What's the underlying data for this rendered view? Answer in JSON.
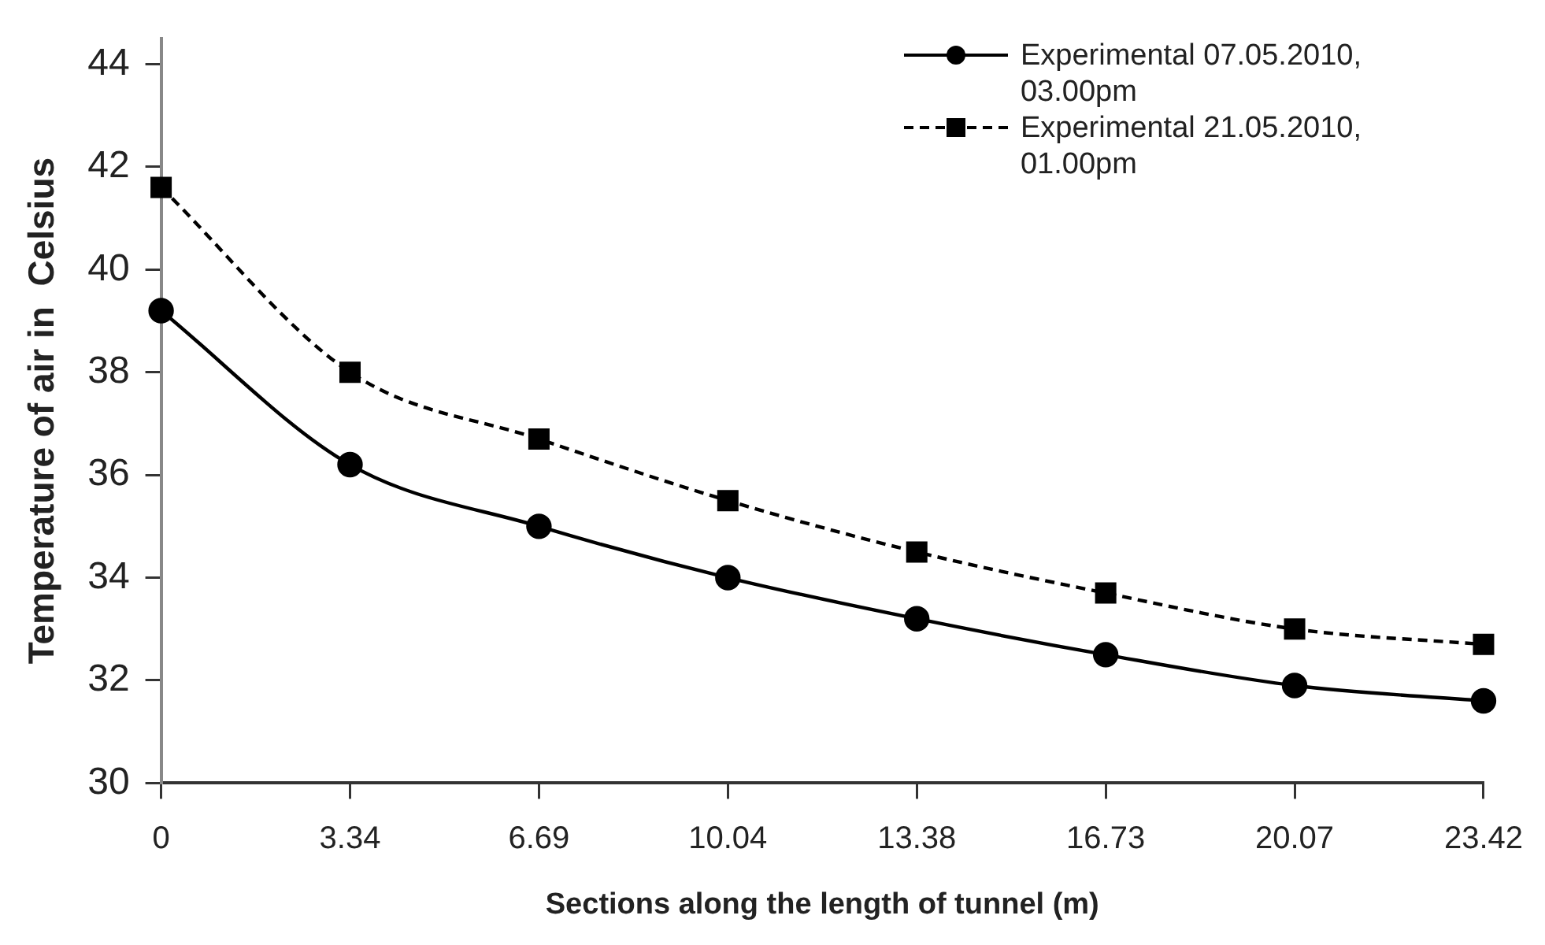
{
  "chart_data": {
    "type": "line",
    "xlabel": "Sections along the length of tunnel (m)",
    "ylabel": "Temperature of air in  Celsius",
    "categories": [
      "0",
      "3.34",
      "6.69",
      "10.04",
      "13.38",
      "16.73",
      "20.07",
      "23.42"
    ],
    "series": [
      {
        "name": "Experimental 07.05.2010, 03.00pm",
        "color": "#000000",
        "marker": "circle",
        "line_style": "solid",
        "values": [
          39.2,
          36.2,
          35.0,
          34.0,
          33.2,
          32.5,
          31.9,
          31.6
        ]
      },
      {
        "name": "Experimental 21.05.2010, 01.00pm",
        "color": "#000000",
        "marker": "square",
        "line_style": "dashed",
        "values": [
          41.6,
          38.0,
          36.7,
          35.5,
          34.5,
          33.7,
          33.0,
          32.7
        ]
      }
    ],
    "ylim": [
      30,
      44.5
    ],
    "yticks": [
      30,
      32,
      34,
      36,
      38,
      40,
      42,
      44
    ],
    "grid": false,
    "legend": "top right"
  }
}
